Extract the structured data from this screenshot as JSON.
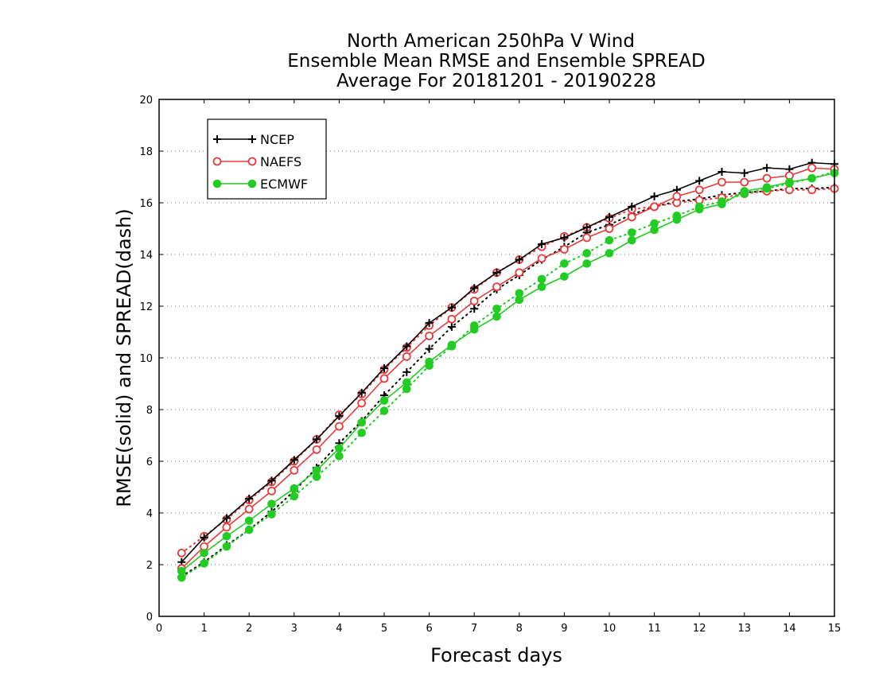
{
  "chart_data": {
    "type": "line",
    "title_lines": [
      "North American 250hPa V Wind",
      "Ensemble Mean RMSE and Ensemble SPREAD",
      "Average For 20181201 - 20190228"
    ],
    "xlabel": "Forecast days",
    "ylabel": "RMSE(solid) and SPREAD(dash)",
    "xlim": [
      0,
      15
    ],
    "ylim": [
      0,
      20
    ],
    "xticks": [
      0,
      1,
      2,
      3,
      4,
      5,
      6,
      7,
      8,
      9,
      10,
      11,
      12,
      13,
      14,
      15
    ],
    "yticks": [
      0,
      2,
      4,
      6,
      8,
      10,
      12,
      14,
      16,
      18,
      20
    ],
    "grid": "horizontal dotted",
    "legend_position": "top-left",
    "x": [
      0.5,
      1,
      1.5,
      2,
      2.5,
      3,
      3.5,
      4,
      4.5,
      5,
      5.5,
      6,
      6.5,
      7,
      7.5,
      8,
      8.5,
      9,
      9.5,
      10,
      10.5,
      11,
      11.5,
      12,
      12.5,
      13,
      13.5,
      14,
      14.5,
      15
    ],
    "series": [
      {
        "name": "NCEP",
        "metric": "RMSE",
        "style": "solid",
        "marker": "plus",
        "color": "#000000",
        "values": [
          2.1,
          3.05,
          3.8,
          4.55,
          5.25,
          6.05,
          6.85,
          7.75,
          8.65,
          9.6,
          10.45,
          11.35,
          11.95,
          12.7,
          13.3,
          13.8,
          14.4,
          14.65,
          15.05,
          15.45,
          15.85,
          16.25,
          16.5,
          16.85,
          17.2,
          17.15,
          17.35,
          17.3,
          17.55,
          17.5
        ]
      },
      {
        "name": "NAEFS",
        "metric": "RMSE",
        "style": "solid",
        "marker": "open-circle",
        "color": "#e83c3c",
        "values": [
          1.85,
          2.7,
          3.45,
          4.15,
          4.85,
          5.65,
          6.45,
          7.35,
          8.25,
          9.2,
          10.05,
          10.85,
          11.5,
          12.2,
          12.75,
          13.3,
          13.85,
          14.2,
          14.65,
          15.0,
          15.45,
          15.85,
          16.25,
          16.5,
          16.8,
          16.8,
          16.95,
          17.05,
          17.35,
          17.3
        ]
      },
      {
        "name": "ECMWF",
        "metric": "RMSE",
        "style": "solid",
        "marker": "filled-circle",
        "color": "#22cc22",
        "values": [
          1.75,
          2.45,
          3.1,
          3.7,
          4.35,
          4.95,
          5.65,
          6.5,
          7.5,
          8.35,
          9.05,
          9.85,
          10.5,
          11.1,
          11.6,
          12.25,
          12.75,
          13.15,
          13.65,
          14.05,
          14.55,
          14.95,
          15.35,
          15.75,
          15.95,
          16.45,
          16.6,
          16.8,
          16.95,
          17.15
        ]
      },
      {
        "name": "NCEP",
        "metric": "SPREAD",
        "style": "dotted",
        "marker": "plus",
        "color": "#000000",
        "values": [
          1.55,
          2.1,
          2.75,
          3.35,
          4.05,
          4.85,
          5.75,
          6.7,
          7.55,
          8.55,
          9.45,
          10.35,
          11.2,
          11.9,
          12.65,
          13.2,
          13.8,
          14.3,
          14.85,
          15.15,
          15.55,
          15.85,
          16.05,
          16.15,
          16.3,
          16.4,
          16.45,
          16.55,
          16.55,
          16.6
        ]
      },
      {
        "name": "NAEFS",
        "metric": "SPREAD",
        "style": "dotted",
        "marker": "open-circle",
        "color": "#e83c3c",
        "values": [
          2.45,
          3.1,
          3.75,
          4.5,
          5.2,
          6.0,
          6.85,
          7.8,
          8.6,
          9.55,
          10.4,
          11.25,
          11.95,
          12.65,
          13.3,
          13.8,
          14.3,
          14.7,
          15.05,
          15.4,
          15.75,
          15.85,
          16.0,
          16.1,
          16.2,
          16.35,
          16.45,
          16.5,
          16.5,
          16.55
        ]
      },
      {
        "name": "ECMWF",
        "metric": "SPREAD",
        "style": "dotted",
        "marker": "filled-circle",
        "color": "#22cc22",
        "values": [
          1.5,
          2.05,
          2.7,
          3.35,
          3.95,
          4.65,
          5.4,
          6.2,
          7.1,
          7.95,
          8.8,
          9.7,
          10.45,
          11.25,
          11.9,
          12.5,
          13.05,
          13.65,
          14.05,
          14.55,
          14.85,
          15.2,
          15.5,
          15.85,
          16.05,
          16.35,
          16.55,
          16.75,
          16.95,
          17.2
        ]
      }
    ],
    "legend": [
      {
        "label": "NCEP",
        "marker": "plus",
        "color": "#000000"
      },
      {
        "label": "NAEFS",
        "marker": "open-circle",
        "color": "#e83c3c"
      },
      {
        "label": "ECMWF",
        "marker": "filled-circle",
        "color": "#22cc22"
      }
    ]
  }
}
